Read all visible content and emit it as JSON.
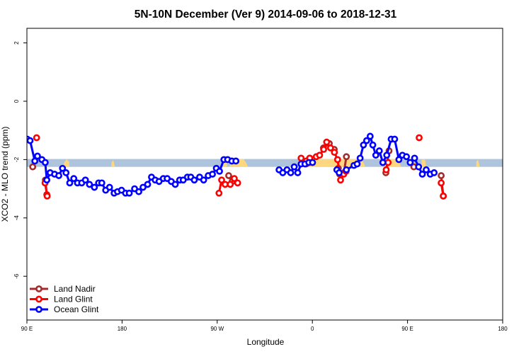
{
  "chart_data": {
    "type": "line",
    "title": "5N-10N December (Ver 9)   2014-09-06 to 2018-12-31",
    "xlabel": "Longitude",
    "ylabel": "XCO2 - MLO trend (ppm)",
    "xlim": [
      -90,
      180
    ],
    "ylim": [
      -7.5,
      2.5
    ],
    "x_ticks": [
      {
        "value": -90,
        "label": "90 E"
      },
      {
        "value": -36,
        "label": "180"
      },
      {
        "value": 18,
        "label": "90 W"
      },
      {
        "value": 72,
        "label": "0"
      },
      {
        "value": 126,
        "label": "90 E"
      },
      {
        "value": 180,
        "label": "180"
      }
    ],
    "y_ticks": [
      {
        "value": 2,
        "label": "2"
      },
      {
        "value": 0,
        "label": "0"
      },
      {
        "value": -2,
        "label": "-2"
      },
      {
        "value": -4,
        "label": "-4"
      },
      {
        "value": -6,
        "label": "-6"
      }
    ],
    "band": {
      "y_low": -2.25,
      "y_high": -1.98,
      "color": "#aec4dd"
    },
    "land_color": "#fcd77f",
    "land_patches": [
      [
        [
          -69,
          -2.25
        ],
        [
          -69,
          -2.12
        ],
        [
          -67.5,
          -1.98
        ],
        [
          -66,
          -2.08
        ],
        [
          -66,
          -2.25
        ]
      ],
      [
        [
          -42,
          -2.25
        ],
        [
          -42,
          -2.1
        ],
        [
          -41,
          -2.02
        ],
        [
          -40,
          -2.25
        ]
      ],
      [
        [
          21.5,
          -2.25
        ],
        [
          21.5,
          -2.05
        ],
        [
          22.5,
          -1.98
        ],
        [
          23.5,
          -2.1
        ],
        [
          23.5,
          -2.25
        ]
      ],
      [
        [
          25,
          -2.25
        ],
        [
          26,
          -2.02
        ],
        [
          28,
          -1.98
        ],
        [
          33,
          -1.98
        ],
        [
          34.5,
          -2.12
        ],
        [
          35.5,
          -2.25
        ]
      ],
      [
        [
          66,
          -2.25
        ],
        [
          67,
          -2.0
        ],
        [
          68,
          -1.98
        ],
        [
          100,
          -1.98
        ],
        [
          101,
          -2.1
        ],
        [
          102,
          -2.25
        ]
      ],
      [
        [
          113,
          -2.25
        ],
        [
          114,
          -1.98
        ],
        [
          121,
          -1.98
        ],
        [
          122,
          -2.2
        ],
        [
          122.5,
          -2.25
        ]
      ],
      [
        [
          130,
          -2.25
        ],
        [
          130.5,
          -2.05
        ],
        [
          131.5,
          -2.25
        ]
      ],
      [
        [
          134,
          -2.25
        ],
        [
          134,
          -2.0
        ],
        [
          136,
          -2.0
        ],
        [
          136.5,
          -2.25
        ]
      ],
      [
        [
          165,
          -2.25
        ],
        [
          165,
          -2.08
        ],
        [
          166,
          -2.0
        ],
        [
          167,
          -2.25
        ]
      ]
    ],
    "series": [
      {
        "name": "Land Nadir",
        "color": "#a52a2a",
        "segments": [
          [
            [
              -86.7,
              -2.25
            ]
          ],
          [
            [
              -79.5,
              -2.7
            ],
            [
              -78.7,
              -3.2
            ]
          ],
          [
            [
              24.5,
              -2.55
            ],
            [
              26.5,
              -2.75
            ]
          ],
          [
            [
              68.5,
              -2.15
            ],
            [
              70.5,
              -1.95
            ]
          ],
          [
            [
              78.3,
              -1.6
            ],
            [
              81.6,
              -1.45
            ],
            [
              84.4,
              -1.65
            ]
          ],
          [
            [
              86.7,
              -2.3
            ],
            [
              87.5,
              -2.5
            ],
            [
              88.0,
              -2.5
            ],
            [
              89.9,
              -2.45
            ],
            [
              91.3,
              -1.9
            ]
          ],
          [
            [
              113.7,
              -2.45
            ],
            [
              115.5,
              -1.7
            ]
          ],
          [
            [
              129.6,
              -2.25
            ]
          ],
          [
            [
              145.1,
              -2.55
            ],
            [
              146.3,
              -3.25
            ]
          ]
        ]
      },
      {
        "name": "Land Glint",
        "color": "#ff0000",
        "segments": [
          [
            [
              -84.5,
              -1.25
            ]
          ],
          [
            [
              -79.7,
              -2.8
            ],
            [
              -78.5,
              -3.25
            ]
          ],
          [
            [
              19.0,
              -3.15
            ],
            [
              20.5,
              -2.7
            ],
            [
              22.5,
              -2.85
            ],
            [
              25.4,
              -2.85
            ],
            [
              27.7,
              -2.65
            ],
            [
              29.6,
              -2.8
            ]
          ],
          [
            [
              65.6,
              -1.95
            ],
            [
              68.5,
              -2.05
            ],
            [
              70.5,
              -1.95
            ],
            [
              74.2,
              -1.9
            ],
            [
              76.1,
              -1.85
            ],
            [
              78.4,
              -1.65
            ],
            [
              80.1,
              -1.4
            ],
            [
              82.3,
              -1.6
            ],
            [
              84.5,
              -1.75
            ],
            [
              86.3,
              -2.0
            ],
            [
              88.0,
              -2.7
            ],
            [
              89.8,
              -2.5
            ],
            [
              91.1,
              -2.4
            ]
          ],
          [
            [
              113.9,
              -2.35
            ],
            [
              115.0,
              -2.1
            ]
          ],
          [
            [
              132.6,
              -1.25
            ]
          ],
          [
            [
              145.1,
              -2.8
            ],
            [
              146.3,
              -3.25
            ]
          ]
        ]
      },
      {
        "name": "Ocean Glint",
        "color": "#0000ff",
        "segments": [
          [
            [
              -89.8,
              -1.3
            ],
            [
              -88.2,
              -1.35
            ],
            [
              -85.5,
              -2.05
            ],
            [
              -84.0,
              -1.88
            ],
            [
              -81.5,
              -2.0
            ],
            [
              -79.6,
              -2.1
            ],
            [
              -78.7,
              -2.7
            ],
            [
              -76.8,
              -2.45
            ],
            [
              -74.3,
              -2.5
            ],
            [
              -71.9,
              -2.55
            ],
            [
              -69.8,
              -2.3
            ],
            [
              -67.8,
              -2.45
            ],
            [
              -65.7,
              -2.8
            ],
            [
              -63.4,
              -2.65
            ],
            [
              -61.3,
              -2.8
            ],
            [
              -58.9,
              -2.8
            ],
            [
              -56.8,
              -2.7
            ],
            [
              -54.5,
              -2.85
            ],
            [
              -51.7,
              -2.95
            ],
            [
              -49.3,
              -2.8
            ],
            [
              -47.5,
              -2.8
            ],
            [
              -45.3,
              -3.05
            ],
            [
              -43.1,
              -2.95
            ],
            [
              -40.5,
              -3.15
            ],
            [
              -38.6,
              -3.1
            ],
            [
              -36.3,
              -3.05
            ],
            [
              -34.0,
              -3.15
            ],
            [
              -31.9,
              -3.15
            ],
            [
              -28.9,
              -3.0
            ],
            [
              -26.5,
              -3.1
            ],
            [
              -24.1,
              -2.95
            ],
            [
              -21.5,
              -2.85
            ],
            [
              -19.3,
              -2.6
            ],
            [
              -17.2,
              -2.7
            ],
            [
              -15.0,
              -2.75
            ],
            [
              -12.6,
              -2.65
            ],
            [
              -10.4,
              -2.65
            ],
            [
              -8.1,
              -2.75
            ],
            [
              -5.8,
              -2.85
            ],
            [
              -3.3,
              -2.7
            ],
            [
              -1.3,
              -2.7
            ],
            [
              1.1,
              -2.6
            ],
            [
              3.0,
              -2.6
            ],
            [
              5.0,
              -2.7
            ],
            [
              8.0,
              -2.6
            ],
            [
              10.3,
              -2.7
            ],
            [
              12.9,
              -2.55
            ],
            [
              15.3,
              -2.5
            ],
            [
              17.5,
              -2.3
            ],
            [
              19.3,
              -2.4
            ],
            [
              21.8,
              -2.0
            ],
            [
              23.9,
              -2.0
            ],
            [
              26.3,
              -2.05
            ],
            [
              28.6,
              -2.05
            ]
          ],
          [
            [
              53.1,
              -2.35
            ],
            [
              55.2,
              -2.45
            ],
            [
              57.6,
              -2.35
            ],
            [
              59.7,
              -2.45
            ],
            [
              61.7,
              -2.25
            ],
            [
              63.7,
              -2.45
            ],
            [
              65.6,
              -2.15
            ],
            [
              67.8,
              -2.15
            ],
            [
              70.0,
              -2.1
            ],
            [
              72.1,
              -2.1
            ]
          ],
          [
            [
              85.9,
              -2.35
            ],
            [
              87.2,
              -2.45
            ]
          ],
          [
            [
              91.3,
              -2.35
            ],
            [
              95.6,
              -2.2
            ],
            [
              97.4,
              -2.15
            ],
            [
              99.1,
              -1.95
            ],
            [
              101.0,
              -1.5
            ],
            [
              102.8,
              -1.35
            ],
            [
              104.8,
              -1.2
            ],
            [
              106.3,
              -1.5
            ],
            [
              108.0,
              -1.85
            ],
            [
              110.0,
              -1.7
            ],
            [
              112.0,
              -2.1
            ],
            [
              114.2,
              -1.85
            ],
            [
              116.7,
              -1.3
            ],
            [
              118.7,
              -1.3
            ],
            [
              121.1,
              -2.0
            ],
            [
              123.1,
              -1.85
            ],
            [
              125.4,
              -1.9
            ],
            [
              127.5,
              -2.1
            ],
            [
              130.0,
              -1.95
            ],
            [
              132.3,
              -2.25
            ],
            [
              134.4,
              -2.5
            ],
            [
              136.6,
              -2.35
            ],
            [
              138.9,
              -2.5
            ],
            [
              141.1,
              -2.45
            ]
          ]
        ]
      }
    ],
    "legend": {
      "position": "bottom-left",
      "entries": [
        "Land Nadir",
        "Land Glint",
        "Ocean Glint"
      ]
    },
    "grid": false
  }
}
